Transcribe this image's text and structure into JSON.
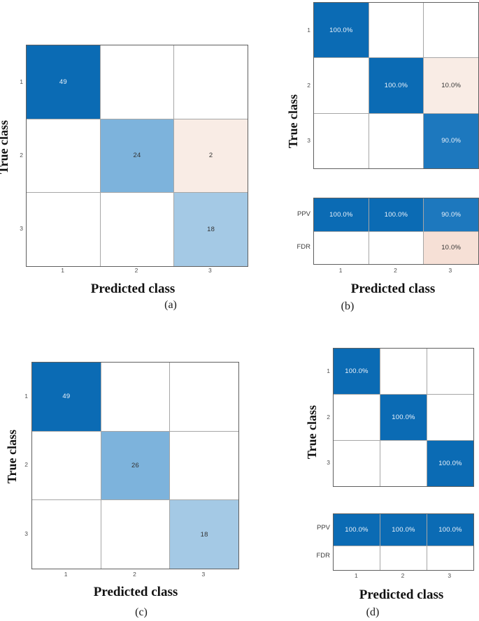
{
  "figure": {
    "colors": {
      "blue_strong": "#0b6bb4",
      "blue_mid": "#7db3dc",
      "blue_light": "#a4c9e5",
      "blue_90": "#1d78be",
      "pink_light": "#f9ece5",
      "pink_fdr": "#f6e0d6",
      "grid_line": "#a6a6a6",
      "outer_border": "#5f5f5f",
      "text_on_dark": "#ecf3fb",
      "text_on_light": "#333333"
    }
  },
  "panels": [
    {
      "caption": "(a)",
      "xlabel": "Predicted class",
      "ylabel": "True class",
      "row_ticks": [
        "1",
        "2",
        "3"
      ],
      "col_ticks": [
        "1",
        "2",
        "3"
      ],
      "main": {
        "rows": [
          [
            {
              "t": "49",
              "c": "blue_strong",
              "f": "light"
            },
            {},
            {}
          ],
          [
            {},
            {
              "t": "24",
              "c": "blue_mid",
              "f": "dark"
            },
            {
              "t": "2",
              "c": "pink_light",
              "f": "dark"
            }
          ],
          [
            {},
            {},
            {
              "t": "18",
              "c": "blue_light",
              "f": "dark"
            }
          ]
        ]
      }
    },
    {
      "caption": "(b)",
      "xlabel": "Predicted class",
      "ylabel": "True class",
      "row_ticks": [
        "1",
        "2",
        "3"
      ],
      "col_ticks": [
        "1",
        "2",
        "3"
      ],
      "summary_row_labels": [
        "PPV",
        "FDR"
      ],
      "main": {
        "rows": [
          [
            {
              "t": "100.0%",
              "c": "blue_strong",
              "f": "light"
            },
            {},
            {}
          ],
          [
            {},
            {
              "t": "100.0%",
              "c": "blue_strong",
              "f": "light"
            },
            {
              "t": "10.0%",
              "c": "pink_light",
              "f": "dark"
            }
          ],
          [
            {},
            {},
            {
              "t": "90.0%",
              "c": "blue_90",
              "f": "light"
            }
          ]
        ]
      },
      "summary": {
        "rows": [
          [
            {
              "t": "100.0%",
              "c": "blue_strong",
              "f": "light"
            },
            {
              "t": "100.0%",
              "c": "blue_strong",
              "f": "light"
            },
            {
              "t": "90.0%",
              "c": "blue_90",
              "f": "light"
            }
          ],
          [
            {},
            {},
            {
              "t": "10.0%",
              "c": "pink_fdr",
              "f": "dark"
            }
          ]
        ]
      }
    },
    {
      "caption": "(c)",
      "xlabel": "Predicted class",
      "ylabel": "True class",
      "row_ticks": [
        "1",
        "2",
        "3"
      ],
      "col_ticks": [
        "1",
        "2",
        "3"
      ],
      "main": {
        "rows": [
          [
            {
              "t": "49",
              "c": "blue_strong",
              "f": "light"
            },
            {},
            {}
          ],
          [
            {},
            {
              "t": "26",
              "c": "blue_mid",
              "f": "dark"
            },
            {}
          ],
          [
            {},
            {},
            {
              "t": "18",
              "c": "blue_light",
              "f": "dark"
            }
          ]
        ]
      }
    },
    {
      "caption": "(d)",
      "xlabel": "Predicted class",
      "ylabel": "True class",
      "row_ticks": [
        "1",
        "2",
        "3"
      ],
      "col_ticks": [
        "1",
        "2",
        "3"
      ],
      "summary_row_labels": [
        "PPV",
        "FDR"
      ],
      "main": {
        "rows": [
          [
            {
              "t": "100.0%",
              "c": "blue_strong",
              "f": "light"
            },
            {},
            {}
          ],
          [
            {},
            {
              "t": "100.0%",
              "c": "blue_strong",
              "f": "light"
            },
            {}
          ],
          [
            {},
            {},
            {
              "t": "100.0%",
              "c": "blue_strong",
              "f": "light"
            }
          ]
        ]
      },
      "summary": {
        "rows": [
          [
            {
              "t": "100.0%",
              "c": "blue_strong",
              "f": "light"
            },
            {
              "t": "100.0%",
              "c": "blue_strong",
              "f": "light"
            },
            {
              "t": "100.0%",
              "c": "blue_strong",
              "f": "light"
            }
          ],
          [
            {},
            {},
            {}
          ]
        ]
      }
    }
  ],
  "chart_data": [
    {
      "type": "heatmap",
      "panel": "(a)",
      "xlabel": "Predicted class",
      "ylabel": "True class",
      "x": [
        "1",
        "2",
        "3"
      ],
      "y": [
        "1",
        "2",
        "3"
      ],
      "values": [
        [
          49,
          null,
          null
        ],
        [
          null,
          24,
          2
        ],
        [
          null,
          null,
          18
        ]
      ],
      "value_format": "count"
    },
    {
      "type": "heatmap",
      "panel": "(b)",
      "xlabel": "Predicted class",
      "ylabel": "True class",
      "x": [
        "1",
        "2",
        "3"
      ],
      "y": [
        "1",
        "2",
        "3"
      ],
      "values": [
        [
          100.0,
          null,
          null
        ],
        [
          null,
          100.0,
          10.0
        ],
        [
          null,
          null,
          90.0
        ]
      ],
      "value_format": "row-normalized percent",
      "column_summary": {
        "PPV": [
          100.0,
          100.0,
          90.0
        ],
        "FDR": [
          null,
          null,
          10.0
        ]
      }
    },
    {
      "type": "heatmap",
      "panel": "(c)",
      "xlabel": "Predicted class",
      "ylabel": "True class",
      "x": [
        "1",
        "2",
        "3"
      ],
      "y": [
        "1",
        "2",
        "3"
      ],
      "values": [
        [
          49,
          null,
          null
        ],
        [
          null,
          26,
          null
        ],
        [
          null,
          null,
          18
        ]
      ],
      "value_format": "count"
    },
    {
      "type": "heatmap",
      "panel": "(d)",
      "xlabel": "Predicted class",
      "ylabel": "True class",
      "x": [
        "1",
        "2",
        "3"
      ],
      "y": [
        "1",
        "2",
        "3"
      ],
      "values": [
        [
          100.0,
          null,
          null
        ],
        [
          null,
          100.0,
          null
        ],
        [
          null,
          null,
          100.0
        ]
      ],
      "value_format": "row-normalized percent",
      "column_summary": {
        "PPV": [
          100.0,
          100.0,
          100.0
        ],
        "FDR": [
          null,
          null,
          null
        ]
      }
    }
  ]
}
